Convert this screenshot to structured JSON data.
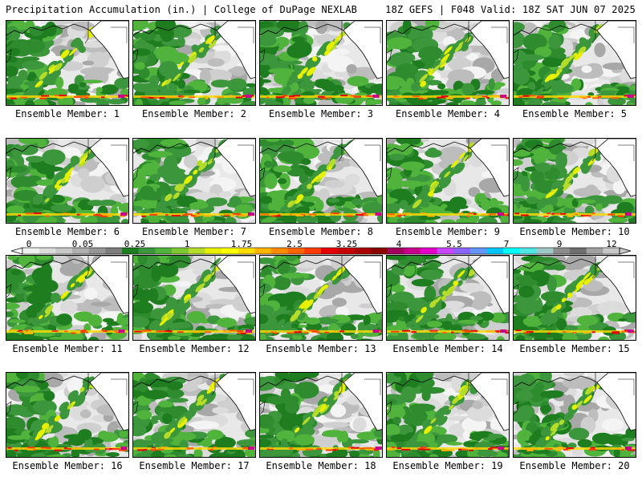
{
  "header": {
    "title": "Precipitation Accumulation (in.) | College of DuPage NEXLAB",
    "run_info": "18Z GEFS | F048 Valid: 18Z SAT JUN 07 2025"
  },
  "panels": [
    {
      "label": "Ensemble Member: 1"
    },
    {
      "label": "Ensemble Member: 2"
    },
    {
      "label": "Ensemble Member: 3"
    },
    {
      "label": "Ensemble Member: 4"
    },
    {
      "label": "Ensemble Member: 5"
    },
    {
      "label": "Ensemble Member: 6"
    },
    {
      "label": "Ensemble Member: 7"
    },
    {
      "label": "Ensemble Member: 8"
    },
    {
      "label": "Ensemble Member: 9"
    },
    {
      "label": "Ensemble Member: 10"
    },
    {
      "label": "Ensemble Member: 11"
    },
    {
      "label": "Ensemble Member: 12"
    },
    {
      "label": "Ensemble Member: 13"
    },
    {
      "label": "Ensemble Member: 14"
    },
    {
      "label": "Ensemble Member: 15"
    },
    {
      "label": "Ensemble Member: 16"
    },
    {
      "label": "Ensemble Member: 17"
    },
    {
      "label": "Ensemble Member: 18"
    },
    {
      "label": "Ensemble Member: 19"
    },
    {
      "label": "Ensemble Member: 20"
    }
  ],
  "colorbar": {
    "tick_labels": [
      "0",
      "0.05",
      "0.25",
      "1",
      "1.75",
      "2.5",
      "3.25",
      "4",
      "5.5",
      "7",
      "9",
      "12"
    ],
    "colors": [
      "#f0f0f0",
      "#dcdcdc",
      "#c8c8c8",
      "#b0b0b0",
      "#969696",
      "#7d7d7d",
      "#1e7d1e",
      "#3c963c",
      "#50b43c",
      "#7dc832",
      "#b4dc28",
      "#e6f000",
      "#ffff00",
      "#ffdc00",
      "#ffb400",
      "#ff8c00",
      "#ff6400",
      "#ff3c00",
      "#e60000",
      "#c80000",
      "#aa0000",
      "#8c0000",
      "#a0005a",
      "#c8008c",
      "#e600c8",
      "#c846ff",
      "#8c64ff",
      "#6496ff",
      "#00c8ff",
      "#00ffff",
      "#50e6e6",
      "#a0c8c8",
      "#8c8c8c",
      "#6e6e6e",
      "#a0a0a0",
      "#c8c8c8"
    ]
  }
}
